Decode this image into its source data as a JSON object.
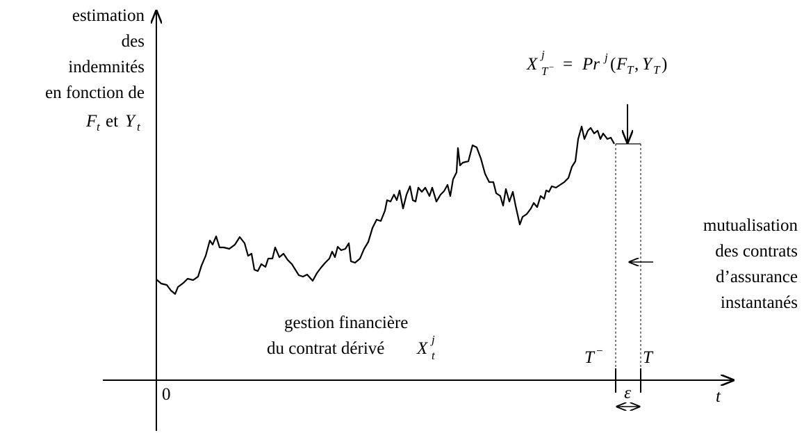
{
  "y_axis_label": [
    "estimation",
    "des",
    "indemnités",
    "en fonction de"
  ],
  "y_axis_label_math": [
    "F",
    "t",
    "et",
    "Y",
    "t"
  ],
  "formula": [
    "X",
    "j",
    "T",
    "−",
    "=",
    "Pr",
    "j",
    "(",
    "F",
    "T",
    ",",
    "Y",
    "T",
    ")"
  ],
  "right_label": [
    "mutualisation",
    "des contrats",
    "d’assurance",
    "instantanés"
  ],
  "bottom_label": [
    "gestion financière",
    "du contrat dérivé"
  ],
  "bottom_math": [
    "X",
    "j",
    "t"
  ],
  "origin": "0",
  "t_axis": "t",
  "t_minus": [
    "T",
    "−"
  ],
  "t_end": "T",
  "epsilon": "ε"
}
